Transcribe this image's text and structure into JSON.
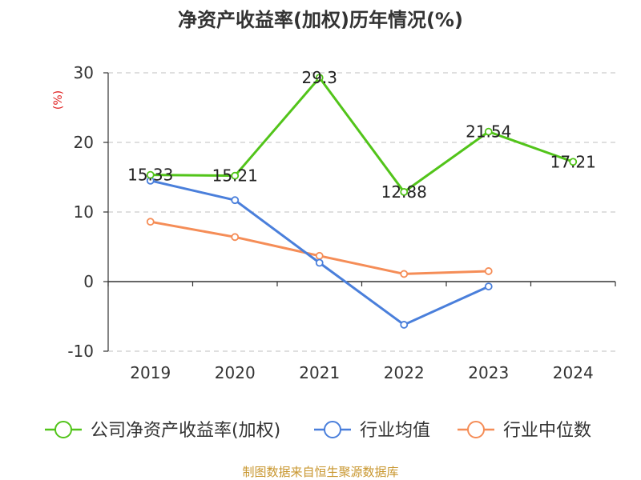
{
  "chart_data": {
    "type": "line",
    "title": "净资产收益率(加权)历年情况(%)",
    "ylabel": "(%)",
    "ylim": [
      -10,
      30
    ],
    "yticks": [
      -10,
      0,
      10,
      20,
      30
    ],
    "categories": [
      "2019",
      "2020",
      "2021",
      "2022",
      "2023",
      "2024"
    ],
    "grid": true,
    "legend_position": "bottom",
    "series": [
      {
        "name": "公司净资产收益率(加权)",
        "color": "#52c41a",
        "labeled": true,
        "values": [
          15.33,
          15.21,
          29.3,
          12.88,
          21.54,
          17.21
        ],
        "labels": [
          "15.33",
          "15.21",
          "29.3",
          "12.88",
          "21.54",
          "17.21"
        ]
      },
      {
        "name": "行业均值",
        "color": "#4a7fdb",
        "labeled": false,
        "values": [
          14.5,
          11.7,
          2.7,
          -6.2,
          -0.7,
          null
        ]
      },
      {
        "name": "行业中位数",
        "color": "#f58d57",
        "labeled": false,
        "values": [
          8.6,
          6.4,
          3.7,
          1.1,
          1.5,
          null
        ]
      }
    ]
  },
  "source": {
    "text": "制图数据来自恒生聚源数据库",
    "color": "#c8962e"
  },
  "unit_color": "#e02020"
}
